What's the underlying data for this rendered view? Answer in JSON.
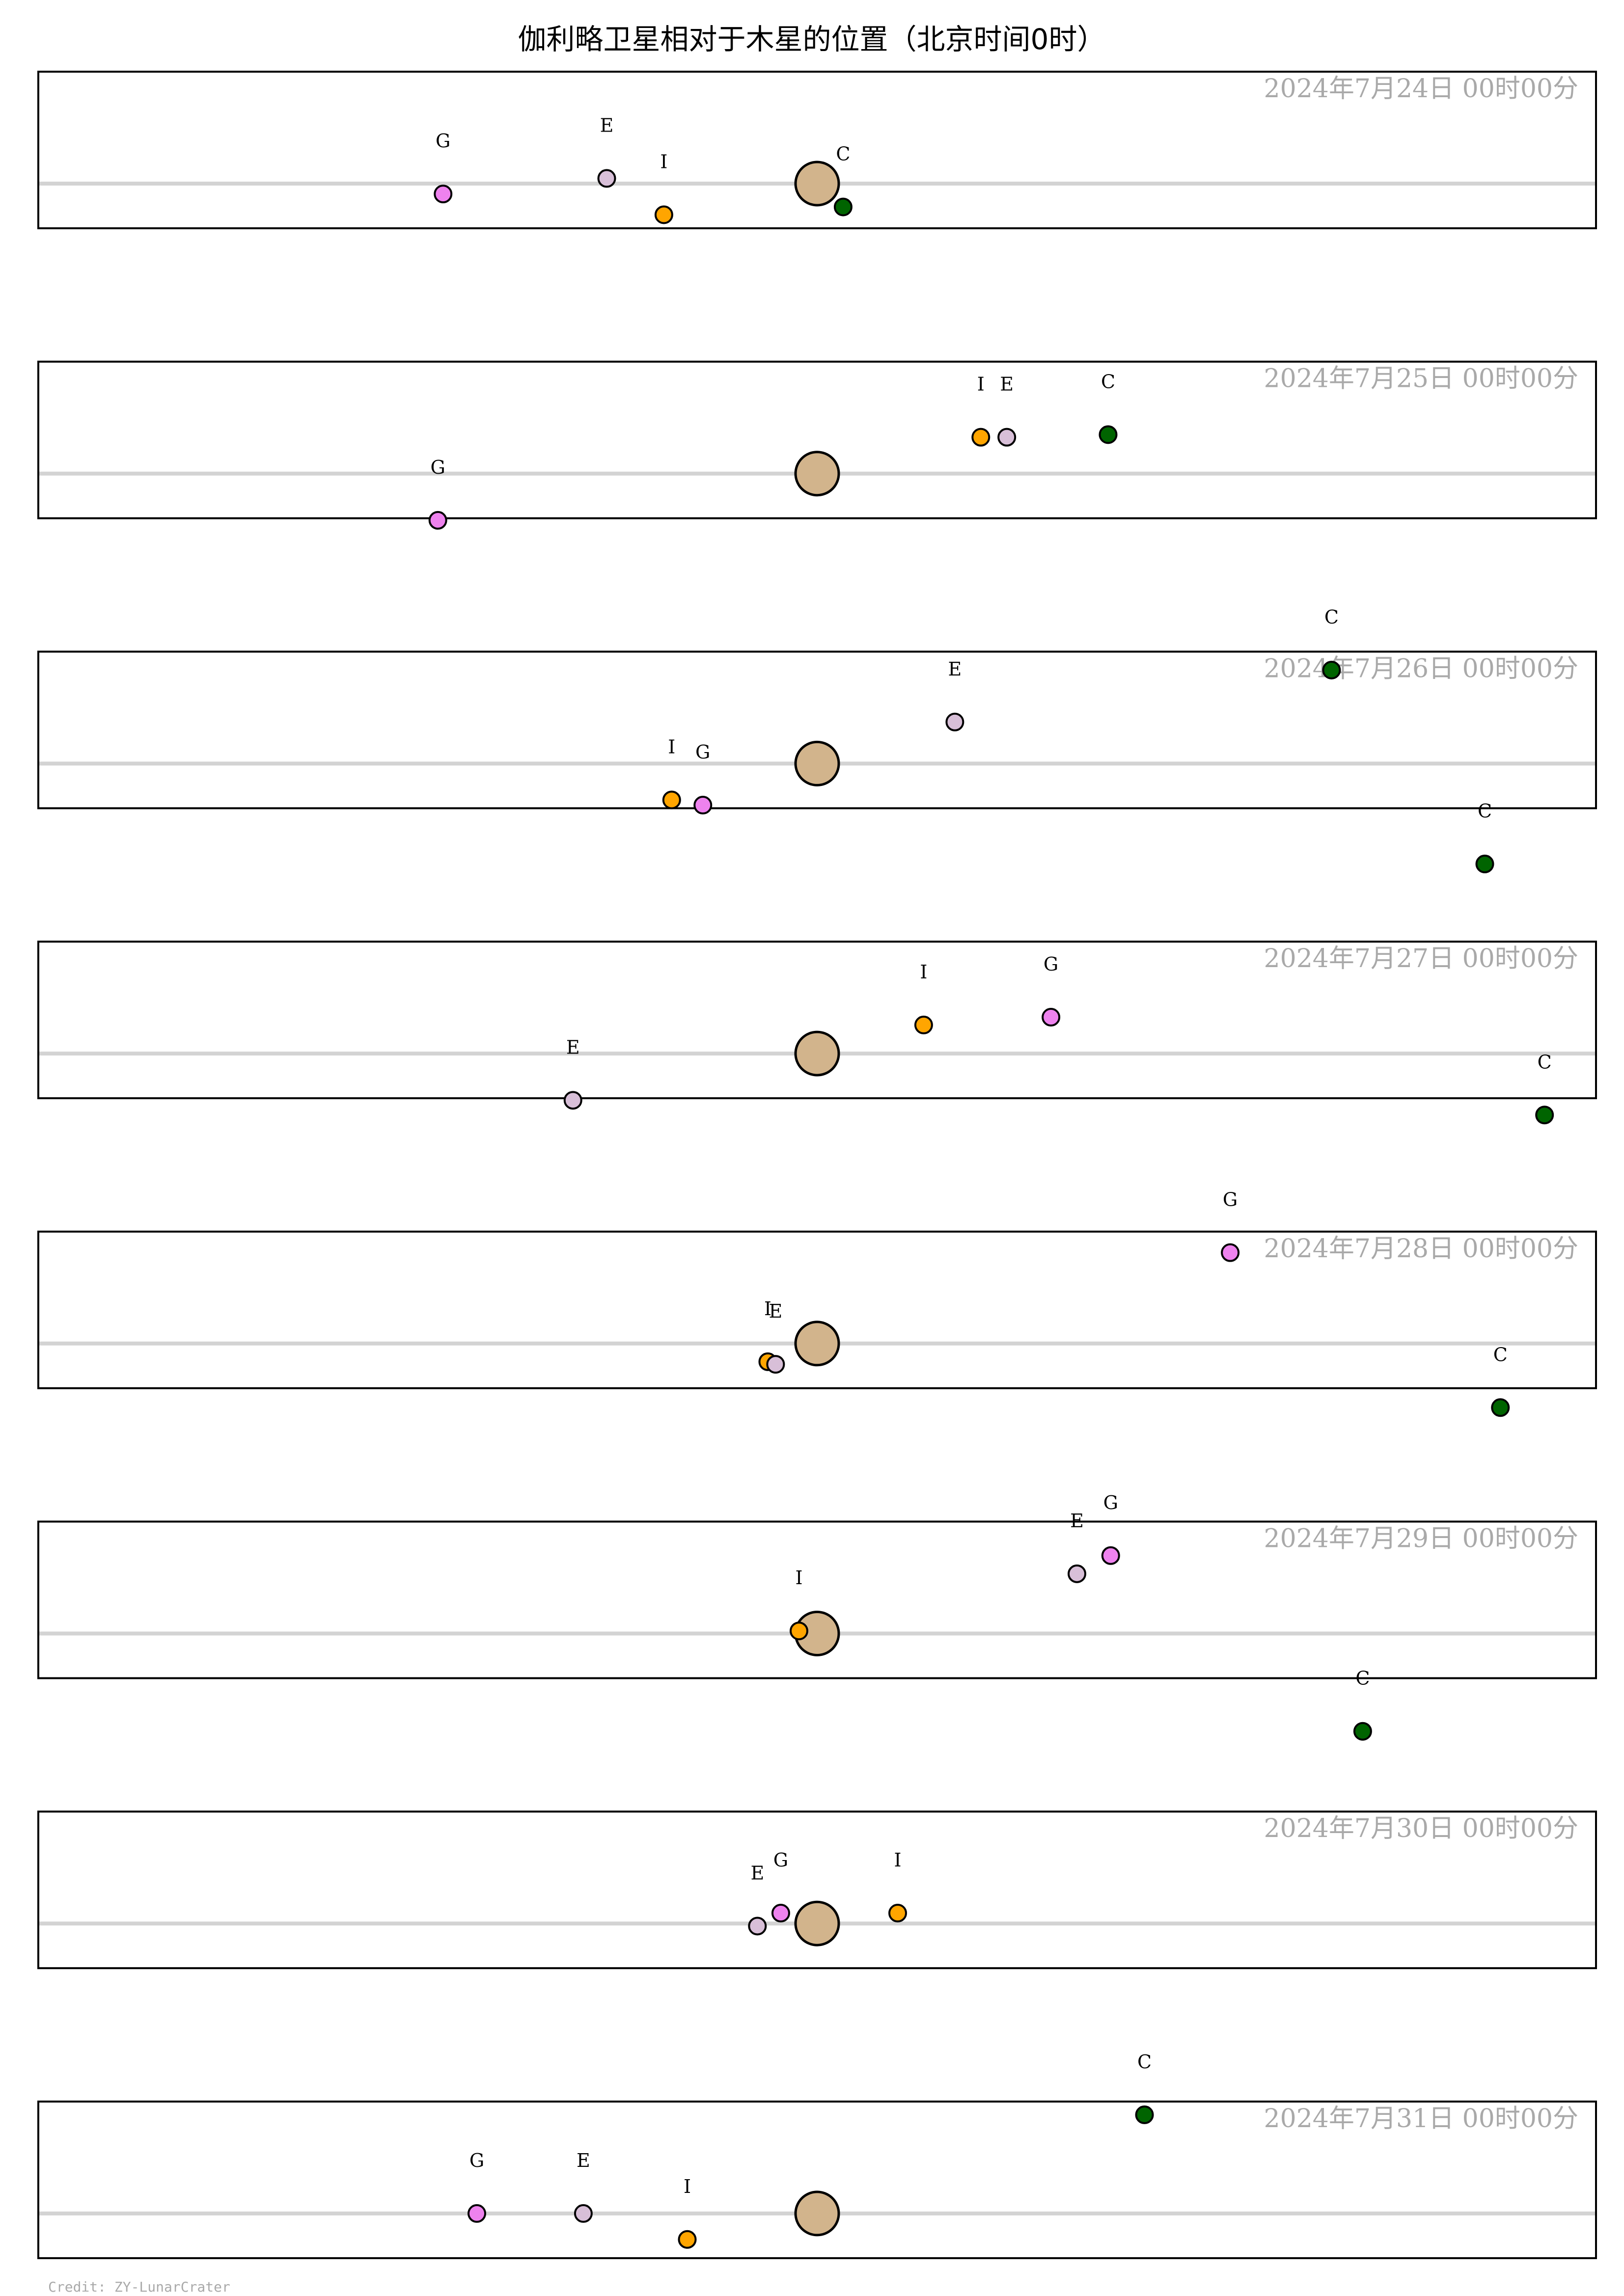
{
  "title": "伽利略卫星相对于木星的位置（北京时间0时）",
  "credit": "Credit: ZY-LunarCrater",
  "colors": {
    "jupiter": "#d2b48c",
    "io": "#ffa500",
    "europa": "#d8bfd8",
    "ganymede": "#ee82ee",
    "callisto": "#006400",
    "equator_line": "#d3d3d3",
    "date_text": "#a9a9a9",
    "frame": "#000000"
  },
  "chart_data": {
    "type": "scatter",
    "description_units": "x and y offsets from Jupiter in Jupiter radii (east/west, north/south)",
    "xlim": [
      -30,
      30
    ],
    "grid": false,
    "moons": [
      {
        "key": "I",
        "name": "I",
        "color_key": "io"
      },
      {
        "key": "E",
        "name": "E",
        "color_key": "europa"
      },
      {
        "key": "G",
        "name": "G",
        "color_key": "ganymede"
      },
      {
        "key": "C",
        "name": "C",
        "color_key": "callisto"
      }
    ],
    "panels": [
      {
        "date": "2024年7月24日  00时00分",
        "positions": {
          "I": [
            -5.9,
            -1.2
          ],
          "E": [
            -8.1,
            0.2
          ],
          "G": [
            -14.4,
            -0.4
          ],
          "C": [
            1.0,
            -0.9
          ]
        }
      },
      {
        "date": "2024年7月25日  00时00分",
        "positions": {
          "I": [
            6.3,
            1.4
          ],
          "E": [
            7.3,
            1.4
          ],
          "G": [
            -14.6,
            -1.8
          ],
          "C": [
            11.2,
            1.5
          ]
        }
      },
      {
        "date": "2024年7月26日  00时00分",
        "positions": {
          "I": [
            -5.6,
            -1.4
          ],
          "E": [
            5.3,
            1.6
          ],
          "G": [
            -4.4,
            -1.6
          ],
          "C": [
            19.8,
            3.6
          ]
        }
      },
      {
        "date": "2024年7月27日  00时00分",
        "positions": {
          "I": [
            4.1,
            1.1
          ],
          "E": [
            -9.4,
            -1.8
          ],
          "G": [
            9.0,
            1.4
          ],
          "C": [
            25.7,
            7.3
          ]
        }
      },
      {
        "date": "2024年7月28日  00时00分",
        "positions": {
          "I": [
            -1.9,
            -0.7
          ],
          "E": [
            -1.6,
            -0.8
          ],
          "G": [
            15.9,
            3.5
          ],
          "C": [
            28.0,
            8.8
          ]
        }
      },
      {
        "date": "2024年7月29日  00时00分",
        "positions": {
          "I": [
            -0.7,
            0.1
          ],
          "E": [
            10.0,
            2.3
          ],
          "G": [
            11.3,
            3.0
          ],
          "C": [
            26.3,
            8.7
          ]
        }
      },
      {
        "date": "2024年7月30日  00时00分",
        "positions": {
          "I": [
            3.1,
            0.4
          ],
          "E": [
            -2.3,
            -0.1
          ],
          "G": [
            -1.4,
            0.4
          ],
          "C": [
            21.0,
            7.4
          ]
        }
      },
      {
        "date": "2024年7月31日  00时00分",
        "positions": {
          "I": [
            -5.0,
            -1.0
          ],
          "E": [
            -9.0,
            0.0
          ],
          "G": [
            -13.1,
            0.0
          ],
          "C": [
            12.6,
            3.8
          ]
        }
      }
    ]
  }
}
